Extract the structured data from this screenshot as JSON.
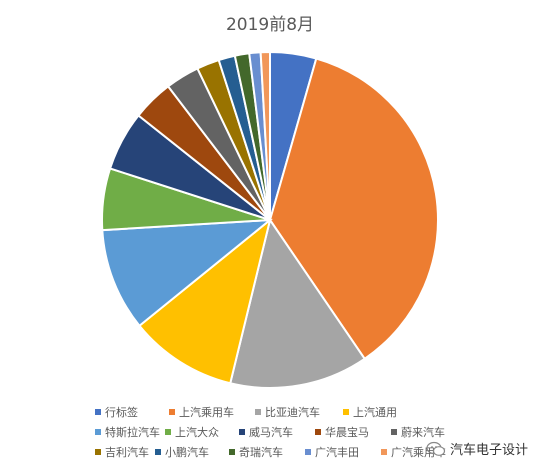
{
  "chart_data": {
    "type": "pie",
    "title": "2019前8月",
    "categories": [
      "行标签",
      "上汽乘用车",
      "比亚迪汽车",
      "上汽通用",
      "特斯拉汽车",
      "上汽大众",
      "威马汽车",
      "华晨宝马",
      "蔚来汽车",
      "吉利汽车",
      "小鹏汽车",
      "奇瑞汽车",
      "广汽丰田",
      "广汽乘用车"
    ],
    "values": [
      4.5,
      36.5,
      13.5,
      10.5,
      10.0,
      6.0,
      5.8,
      4.0,
      3.3,
      2.2,
      1.6,
      1.4,
      1.1,
      0.9
    ],
    "colors": [
      "#4472C4",
      "#ED7D31",
      "#A5A5A5",
      "#FFC000",
      "#5B9BD5",
      "#70AD47",
      "#264478",
      "#9E480E",
      "#636363",
      "#997300",
      "#255E91",
      "#43682B",
      "#698ED0",
      "#F1975A"
    ],
    "legend_position": "bottom"
  },
  "watermark": {
    "text": "汽车电子设计",
    "icon": "wechat-icon"
  }
}
